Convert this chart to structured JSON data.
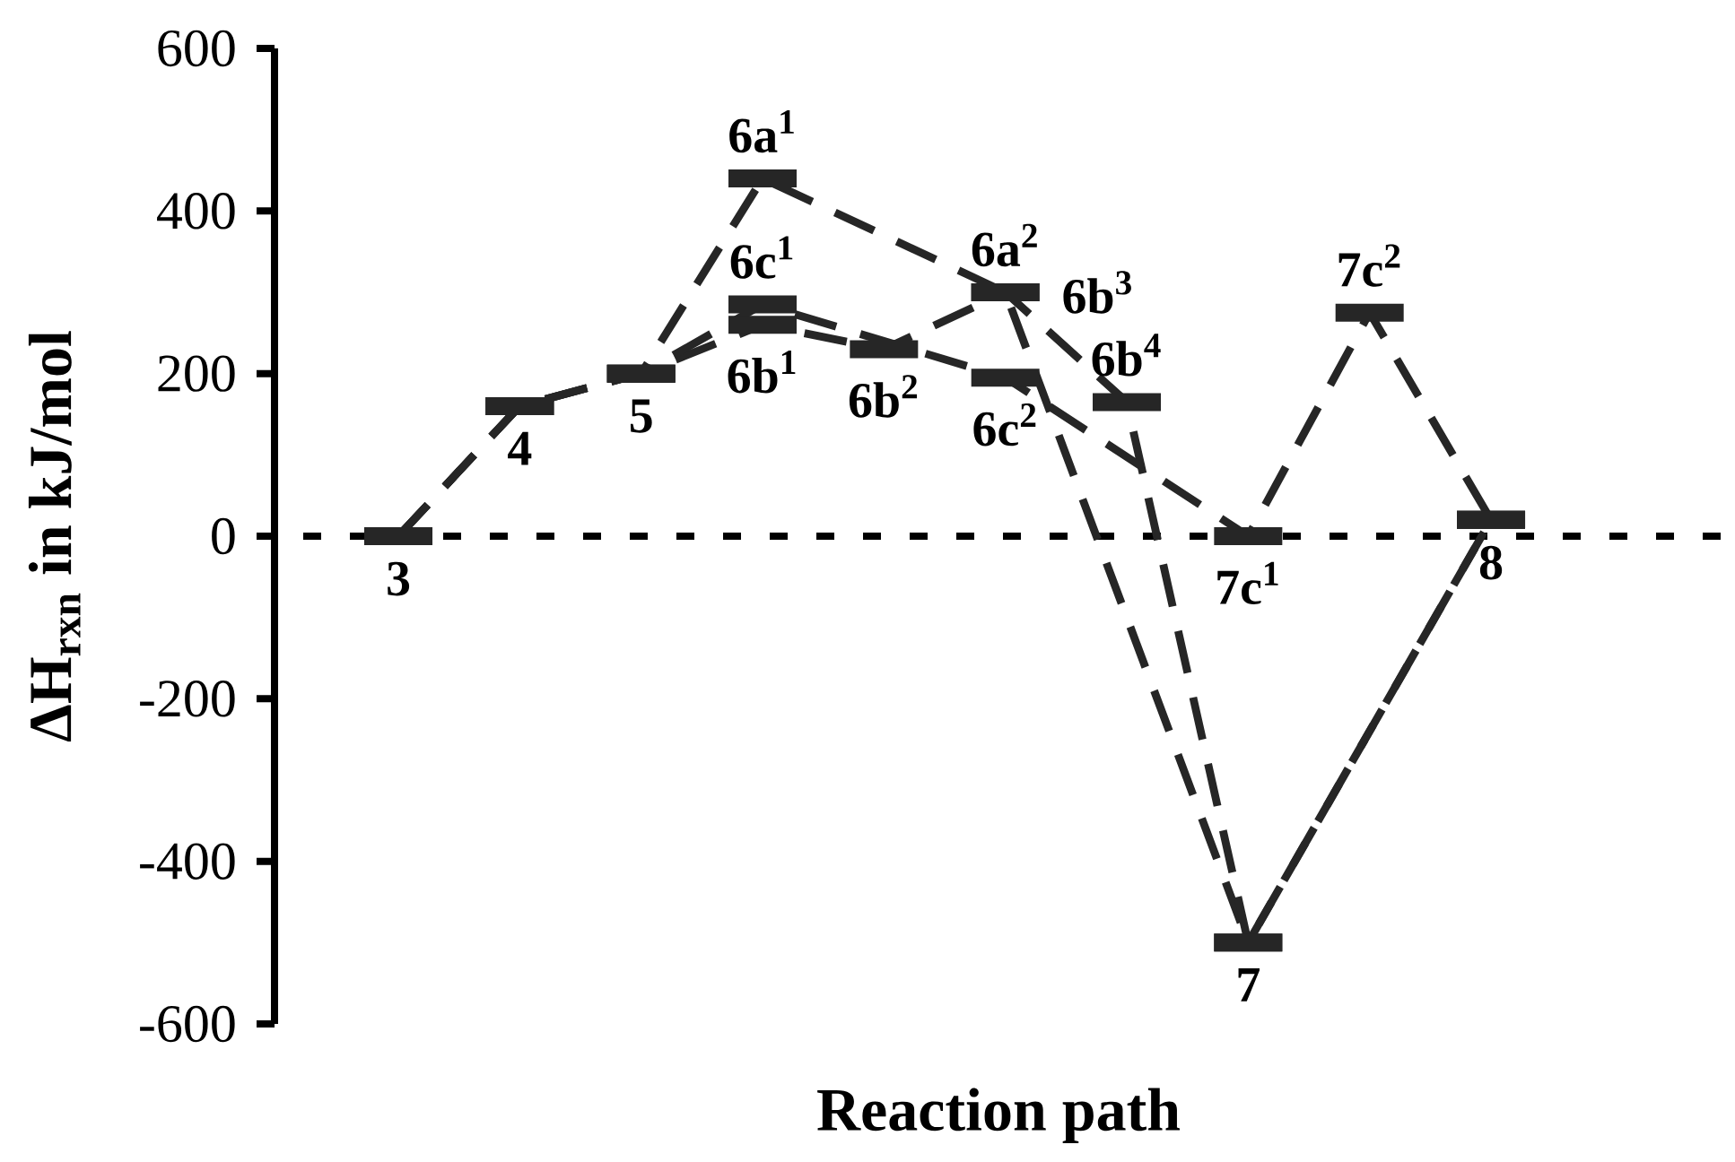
{
  "chart_data": {
    "type": "line",
    "xlabel": "Reaction path",
    "ylabel": "ΔH$_{rxn}$ in kJ/mol",
    "categories": [
      null,
      null,
      null,
      null,
      null,
      null,
      null,
      null,
      null,
      null
    ],
    "series": [
      {
        "color": "#262626",
        "values": [
          0,
          160,
          200,
          440,
          null,
          300,
          null,
          -500,
          null,
          20
        ]
      },
      {
        "color": "#262626",
        "values": [
          0,
          160,
          200,
          260,
          230,
          300,
          165,
          -500,
          null,
          20
        ]
      },
      {
        "color": "#262626",
        "values": [
          0,
          160,
          200,
          285,
          null,
          195,
          null,
          0,
          275,
          20
        ]
      }
    ],
    "annotations": [
      {
        "text": "3",
        "y": 0
      },
      {
        "text": "4",
        "y": 160
      },
      {
        "text": "5",
        "y": 200
      },
      {
        "text": "6a$^{1}$",
        "y": 440
      },
      {
        "text": "6c$^{1}$",
        "y": 285
      },
      {
        "text": "6b$^{1}$",
        "y": 260
      },
      {
        "text": "6b$^{2}$",
        "y": 230
      },
      {
        "text": "6a$^{2}$",
        "y": 300
      },
      "6b$^{3}$",
      {
        "text": "6c$^{2}$",
        "y": 195
      },
      {
        "text": "6b$^{4}$",
        "y": 165
      },
      {
        "text": "7c$^{1}$",
        "y": 0
      },
      {
        "text": "7",
        "y": -500
      },
      {
        "text": "7c$^{2}$",
        "y": 275
      },
      {
        "text": "8",
        "y": 20
      }
    ],
    "ylim": [
      -600,
      600
    ],
    "yticks": [
      -600,
      -400,
      -200,
      0,
      200,
      400,
      600
    ],
    "line_style": "dashed",
    "tick_labels": "y",
    "ref_lines": [
      {
        "axis": "y",
        "value": 0,
        "line_style": "dotted"
      }
    ]
  }
}
